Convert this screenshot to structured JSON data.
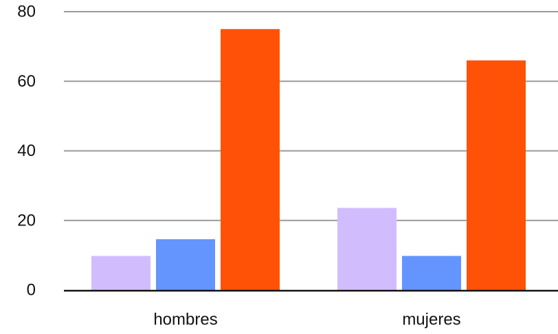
{
  "chart_data": {
    "type": "bar",
    "categories": [
      "hombres",
      "mujeres"
    ],
    "series": [
      {
        "values": [
          9.8,
          23.6
        ],
        "color": "#d1bdfd"
      },
      {
        "values": [
          14.6,
          9.8
        ],
        "color": "#6495ff"
      },
      {
        "values": [
          75.0,
          66.0
        ],
        "color": "#ff5206"
      }
    ],
    "ylim": [
      0,
      80
    ],
    "yticks": [
      0,
      20,
      40,
      60,
      80
    ],
    "ytick_labels": [
      "0",
      "20",
      "40",
      "60",
      "80"
    ],
    "grid": true,
    "legend": "none",
    "title": "",
    "xlabel": "",
    "ylabel": ""
  },
  "colors": {
    "grid": "#9a9a9a",
    "axis": "#111111"
  }
}
